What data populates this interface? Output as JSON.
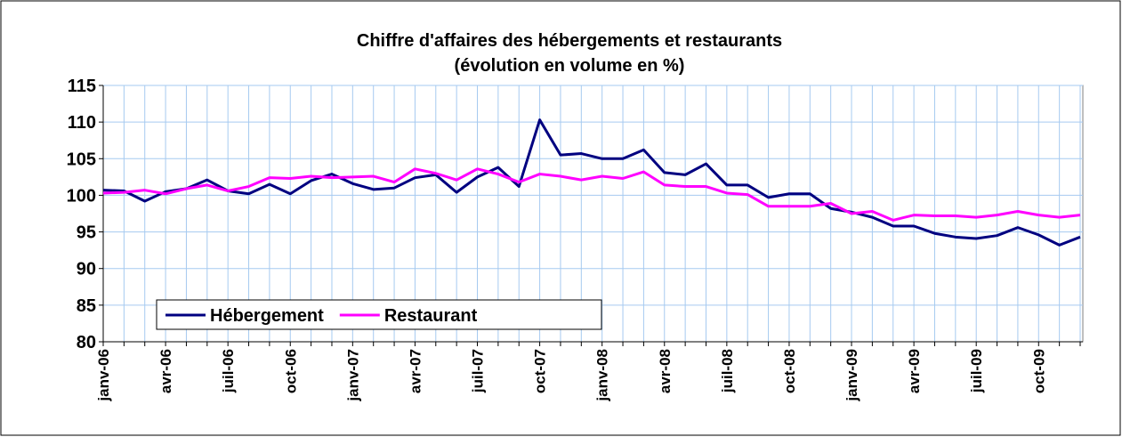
{
  "chart_data": {
    "type": "line",
    "title": "Chiffre d'affaires des hébergements et restaurants",
    "subtitle": "(évolution en volume en %)",
    "categories": [
      "janv-06",
      null,
      null,
      "avr-06",
      null,
      null,
      "juil-06",
      null,
      null,
      "oct-06",
      null,
      null,
      "janv-07",
      null,
      null,
      "avr-07",
      null,
      null,
      "juil-07",
      null,
      null,
      "oct-07",
      null,
      null,
      "janv-08",
      null,
      null,
      "avr-08",
      null,
      null,
      "juil-08",
      null,
      null,
      "oct-08",
      null,
      null,
      "janv-09",
      null,
      null,
      "avr-09",
      null,
      null,
      "juil-09",
      null,
      null,
      "oct-09",
      null,
      null
    ],
    "series": [
      {
        "name": "Hébergement",
        "color": "#000080",
        "values": [
          100.7,
          100.6,
          99.2,
          100.5,
          100.9,
          102.1,
          100.6,
          100.2,
          101.5,
          100.2,
          102.0,
          102.9,
          101.6,
          100.8,
          101.0,
          102.4,
          102.8,
          100.4,
          102.5,
          103.8,
          101.2,
          110.3,
          105.5,
          105.7,
          105.0,
          105.0,
          106.2,
          103.1,
          102.8,
          104.3,
          101.4,
          101.4,
          99.7,
          100.2,
          100.2,
          98.2,
          97.7,
          97.0,
          95.8,
          95.8,
          94.8,
          94.3,
          94.1,
          94.5,
          95.6,
          94.6,
          93.2,
          94.3
        ]
      },
      {
        "name": "Restaurant",
        "color": "#ff00ff",
        "values": [
          100.3,
          100.4,
          100.7,
          100.2,
          100.9,
          101.4,
          100.6,
          101.2,
          102.4,
          102.3,
          102.6,
          102.4,
          102.5,
          102.6,
          101.8,
          103.6,
          103.0,
          102.1,
          103.6,
          102.9,
          101.8,
          102.9,
          102.6,
          102.1,
          102.6,
          102.3,
          103.2,
          101.4,
          101.2,
          101.2,
          100.3,
          100.1,
          98.5,
          98.5,
          98.5,
          98.9,
          97.5,
          97.8,
          96.6,
          97.3,
          97.2,
          97.2,
          97.0,
          97.3,
          97.8,
          97.3,
          97.0,
          97.3
        ]
      }
    ],
    "ylim": [
      80,
      115
    ],
    "yticks": [
      80,
      85,
      90,
      95,
      100,
      105,
      110,
      115
    ],
    "grid": true,
    "legend": "lower left"
  }
}
